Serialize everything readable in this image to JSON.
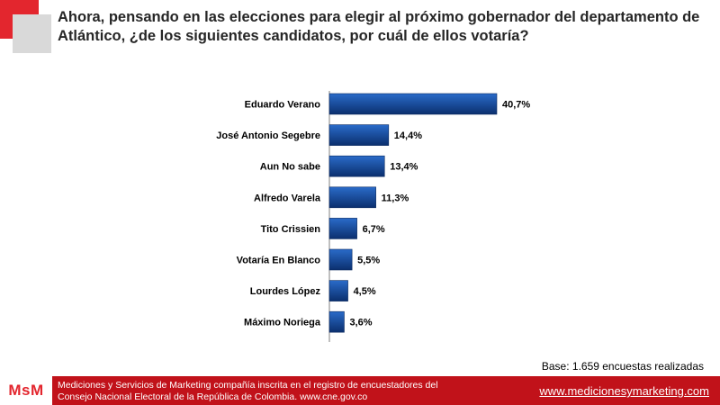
{
  "title": "Ahora, pensando en las elecciones para elegir al próximo gobernador del departamento de Atlántico, ¿de los siguientes candidatos, por cuál de ellos votaría?",
  "base_note": "Base: 1.659 encuestas realizadas",
  "footer": {
    "logo": "MsM",
    "line1": "Mediciones y Servicios de Marketing compañía inscrita en el registro de encuestadores del",
    "line2": "Consejo Nacional Electoral  de la República de Colombia. www.cne.gov.co",
    "url": "www.medicionesymarketing.com"
  },
  "colors": {
    "accent": "#e3262e",
    "footer_band": "#c1121a",
    "bar_dark": "#0b2f6e",
    "bar_light": "#2a6bc9"
  },
  "chart_data": {
    "type": "bar",
    "orientation": "horizontal",
    "categories": [
      "Eduardo Verano",
      "José Antonio Segebre",
      "Aun No sabe",
      "Alfredo Varela",
      "Tito Crissien",
      "Votaría En Blanco",
      "Lourdes López",
      "Máximo Noriega"
    ],
    "values": [
      40.7,
      14.4,
      13.4,
      11.3,
      6.7,
      5.5,
      4.5,
      3.6
    ],
    "value_labels": [
      "40,7%",
      "14,4%",
      "13,4%",
      "11,3%",
      "6,7%",
      "5,5%",
      "4,5%",
      "3,6%"
    ],
    "xlim": [
      0,
      40.7
    ],
    "grid": false,
    "legend": false
  }
}
